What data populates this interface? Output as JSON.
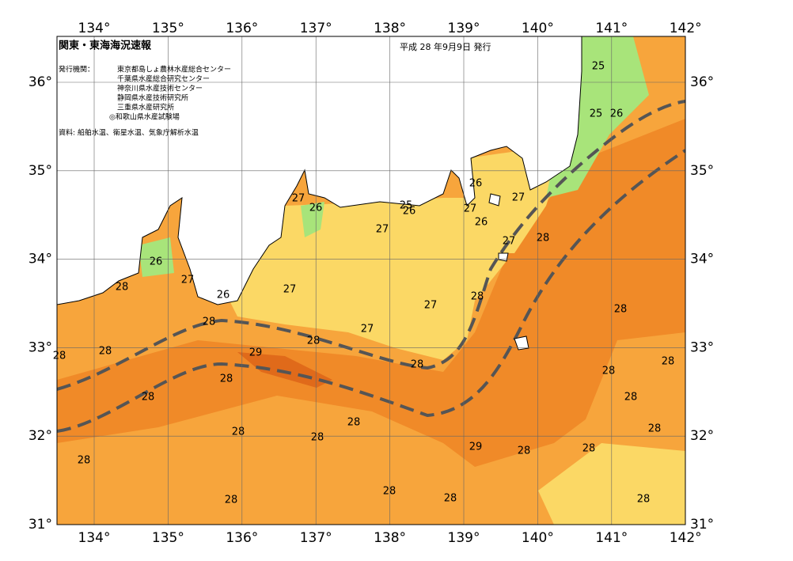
{
  "map": {
    "title": "関東・東海海況速報",
    "date": "平成 28 年9月9日 発行",
    "issuer_label": "発行機関：",
    "issuers": [
      "東京都島しょ農林水産総合センター",
      "千葉県水産総合研究センター",
      "神奈川県水産技術センター",
      "静岡県水産技術研究所",
      "三重県水産研究所",
      "◎和歌山県水産試験場"
    ],
    "source": "資料: 船舶水温、衛星水温、気象庁解析水温",
    "lon_ticks": [
      {
        "value": 134,
        "label": "134°"
      },
      {
        "value": 135,
        "label": "135°"
      },
      {
        "value": 136,
        "label": "136°"
      },
      {
        "value": 137,
        "label": "137°"
      },
      {
        "value": 138,
        "label": "138°"
      },
      {
        "value": 139,
        "label": "139°"
      },
      {
        "value": 140,
        "label": "140°"
      },
      {
        "value": 141,
        "label": "141°"
      },
      {
        "value": 142,
        "label": "142°"
      }
    ],
    "lat_ticks": [
      {
        "value": 31,
        "label": "31°"
      },
      {
        "value": 32,
        "label": "32°"
      },
      {
        "value": 33,
        "label": "33°"
      },
      {
        "value": 34,
        "label": "34°"
      },
      {
        "value": 35,
        "label": "35°"
      },
      {
        "value": 36,
        "label": "36°"
      }
    ],
    "isotherm_labels": [
      25,
      25,
      26,
      26,
      27,
      27,
      26,
      25,
      26,
      27,
      26,
      28,
      27,
      27,
      26,
      27,
      28,
      26,
      27,
      28,
      27,
      28,
      28,
      27,
      28,
      28,
      28,
      29,
      28,
      28,
      28,
      28,
      28,
      28,
      28,
      28,
      28,
      28,
      29,
      28,
      28,
      28,
      28,
      28,
      28,
      28
    ]
  }
}
